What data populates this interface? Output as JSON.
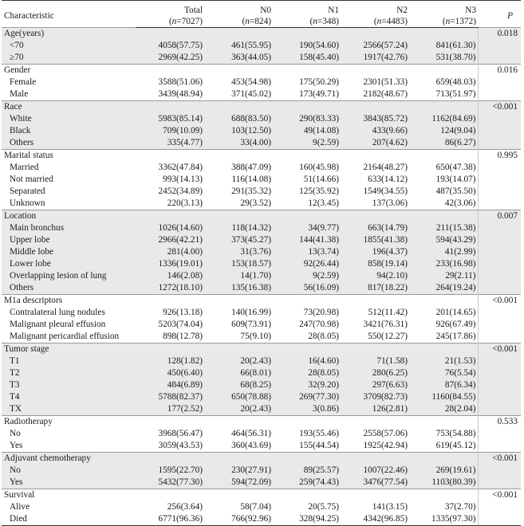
{
  "header": {
    "characteristic": "Characteristic",
    "total_label": "Total",
    "total_n": "(n=7027)",
    "n0_label": "N0",
    "n0_n": "(n=824)",
    "n1_label": "N1",
    "n1_n": "(n=348)",
    "n2_label": "N2",
    "n2_n": "(n=4483)",
    "n3_label": "N3",
    "n3_n": "(n=1372)",
    "p_label": "P"
  },
  "groups": [
    {
      "title": "Age(years)",
      "p": "0.018",
      "rows": [
        [
          "<70",
          "4058(57.75)",
          "461(55.95)",
          "190(54.60)",
          "2566(57.24)",
          "841(61.30)"
        ],
        [
          "≥70",
          "2969(42.25)",
          "363(44.05)",
          "158(45.40)",
          "1917(42.76)",
          "531(38.70)"
        ]
      ]
    },
    {
      "title": "Gender",
      "p": "0.016",
      "rows": [
        [
          "Female",
          "3588(51.06)",
          "453(54.98)",
          "175(50.29)",
          "2301(51.33)",
          "659(48.03)"
        ],
        [
          "Male",
          "3439(48.94)",
          "371(45.02)",
          "173(49.71)",
          "2182(48.67)",
          "713(51.97)"
        ]
      ]
    },
    {
      "title": "Race",
      "p": "<0.001",
      "rows": [
        [
          "White",
          "5983(85.14)",
          "688(83.50)",
          "290(83.33)",
          "3843(85.72)",
          "1162(84.69)"
        ],
        [
          "Black",
          "709(10.09)",
          "103(12.50)",
          "49(14.08)",
          "433(9.66)",
          "124(9.04)"
        ],
        [
          "Others",
          "335(4.77)",
          "33(4.00)",
          "9(2.59)",
          "207(4.62)",
          "86(6.27)"
        ]
      ]
    },
    {
      "title": "Marital status",
      "p": "0.995",
      "rows": [
        [
          "Married",
          "3362(47.84)",
          "388(47.09)",
          "160(45.98)",
          "2164(48.27)",
          "650(47.38)"
        ],
        [
          "Not married",
          "993(14.13)",
          "116(14.08)",
          "51(14.66)",
          "633(14.12)",
          "193(14.07)"
        ],
        [
          "Separated",
          "2452(34.89)",
          "291(35.32)",
          "125(35.92)",
          "1549(34.55)",
          "487(35.50)"
        ],
        [
          "Unknown",
          "220(3.13)",
          "29(3.52)",
          "12(3.45)",
          "137(3.06)",
          "42(3.06)"
        ]
      ]
    },
    {
      "title": "Location",
      "p": "0.007",
      "rows": [
        [
          "Main bronchus",
          "1026(14.60)",
          "118(14.32)",
          "34(9.77)",
          "663(14.79)",
          "211(15.38)"
        ],
        [
          "Upper lobe",
          "2966(42.21)",
          "373(45.27)",
          "144(41.38)",
          "1855(41.38)",
          "594(43.29)"
        ],
        [
          "Middle lobe",
          "281(4.00)",
          "31(3.76)",
          "13(3.74)",
          "196(4.37)",
          "41(2.99)"
        ],
        [
          "Lower lobe",
          "1336(19.01)",
          "153(18.57)",
          "92(26.44)",
          "858(19.14)",
          "233(16.98)"
        ],
        [
          "Overlapping lesion of lung",
          "146(2.08)",
          "14(1.70)",
          "9(2.59)",
          "94(2.10)",
          "29(2.11)"
        ],
        [
          "Others",
          "1272(18.10)",
          "135(16.38)",
          "56(16.09)",
          "817(18.22)",
          "264(19.24)"
        ]
      ]
    },
    {
      "title": "M1a descriptors",
      "p": "<0.001",
      "rows": [
        [
          "Contralateral lung nodules",
          "926(13.18)",
          "140(16.99)",
          "73(20.98)",
          "512(11.42)",
          "201(14.65)"
        ],
        [
          "Malignant pleural effusion",
          "5203(74.04)",
          "609(73.91)",
          "247(70.98)",
          "3421(76.31)",
          "926(67.49)"
        ],
        [
          "Malignant pericardial effusion",
          "898(12.78)",
          "75(9.10)",
          "28(8.05)",
          "550(12.27)",
          "245(17.86)"
        ]
      ]
    },
    {
      "title": "Tumor stage",
      "p": "<0.001",
      "rows": [
        [
          "T1",
          "128(1.82)",
          "20(2.43)",
          "16(4.60)",
          "71(1.58)",
          "21(1.53)"
        ],
        [
          "T2",
          "450(6.40)",
          "66(8.01)",
          "28(8.05)",
          "280(6.25)",
          "76(5.54)"
        ],
        [
          "T3",
          "484(6.89)",
          "68(8.25)",
          "32(9.20)",
          "297(6.63)",
          "87(6.34)"
        ],
        [
          "T4",
          "5788(82.37)",
          "650(78.88)",
          "269(77.30)",
          "3709(82.73)",
          "1160(84.55)"
        ],
        [
          "TX",
          "177(2.52)",
          "20(2.43)",
          "3(0.86)",
          "126(2.81)",
          "28(2.04)"
        ]
      ]
    },
    {
      "title": "Radiotherapy",
      "p": "0.533",
      "rows": [
        [
          "No",
          "3968(56.47)",
          "464(56.31)",
          "193(55.46)",
          "2558(57.06)",
          "753(54.88)"
        ],
        [
          "Yes",
          "3059(43.53)",
          "360(43.69)",
          "155(44.54)",
          "1925(42.94)",
          "619(45.12)"
        ]
      ]
    },
    {
      "title": "Adjuvant chemotherapy",
      "p": "<0.001",
      "rows": [
        [
          "No",
          "1595(22.70)",
          "230(27.91)",
          "89(25.57)",
          "1007(22.46)",
          "269(19.61)"
        ],
        [
          "Yes",
          "5432(77.30)",
          "594(72.09)",
          "259(74.43)",
          "3476(77.54)",
          "1103(80.39)"
        ]
      ]
    },
    {
      "title": "Survival",
      "p": "<0.001",
      "rows": [
        [
          "Alive",
          "256(3.64)",
          "58(7.04)",
          "20(5.75)",
          "141(3.15)",
          "37(2.70)"
        ],
        [
          "Died",
          "6771(96.36)",
          "766(92.96)",
          "328(94.25)",
          "4342(96.85)",
          "1335(97.30)"
        ]
      ]
    }
  ]
}
